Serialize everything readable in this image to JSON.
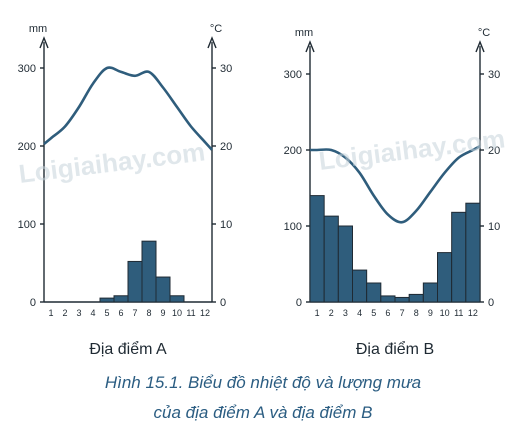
{
  "chart_data": [
    {
      "type": "bar+line",
      "title": "Địa điểm A",
      "months": [
        "1",
        "2",
        "3",
        "4",
        "5",
        "6",
        "7",
        "8",
        "9",
        "10",
        "11",
        "12"
      ],
      "precipitation_label": "mm",
      "temperature_label": "°C",
      "precipitation_ticks": [
        "0",
        "100",
        "200",
        "300"
      ],
      "temperature_ticks": [
        "0",
        "10",
        "20",
        "30"
      ],
      "precipitation_range": [
        0,
        300
      ],
      "temperature_range": [
        0,
        30
      ],
      "series": [
        {
          "name": "precipitation",
          "kind": "bar",
          "axis": "left",
          "values": [
            0,
            0,
            0,
            0,
            5,
            8,
            52,
            78,
            32,
            8,
            0,
            0
          ]
        },
        {
          "name": "temperature",
          "kind": "line",
          "axis": "right",
          "values": [
            21,
            22.5,
            25,
            28,
            30,
            29.5,
            29,
            29.5,
            27.5,
            25,
            22.5,
            20.5
          ]
        }
      ]
    },
    {
      "type": "bar+line",
      "title": "Địa điểm B",
      "months": [
        "1",
        "2",
        "3",
        "4",
        "5",
        "6",
        "7",
        "8",
        "9",
        "10",
        "11",
        "12"
      ],
      "precipitation_label": "mm",
      "temperature_label": "°C",
      "precipitation_ticks": [
        "0",
        "100",
        "200",
        "300"
      ],
      "temperature_ticks": [
        "0",
        "10",
        "20",
        "30"
      ],
      "precipitation_range": [
        0,
        300
      ],
      "temperature_range": [
        0,
        30
      ],
      "series": [
        {
          "name": "precipitation",
          "kind": "bar",
          "axis": "left",
          "values": [
            140,
            113,
            100,
            42,
            25,
            8,
            6,
            10,
            25,
            65,
            118,
            130
          ]
        },
        {
          "name": "temperature",
          "kind": "line",
          "axis": "right",
          "values": [
            20,
            20,
            19,
            17,
            14,
            11.5,
            10.5,
            12,
            14.5,
            17,
            19,
            20
          ]
        }
      ]
    }
  ],
  "caption": {
    "line1": "Hình 15.1. Biểu đồ nhiệt độ và lượng mưa",
    "line2": "của địa điểm A và địa điểm B"
  },
  "watermark": "Loigiaihay.com",
  "colors": {
    "bar": "#2f5d7c",
    "line": "#2f5d7c",
    "caption": "#2b5d82"
  }
}
